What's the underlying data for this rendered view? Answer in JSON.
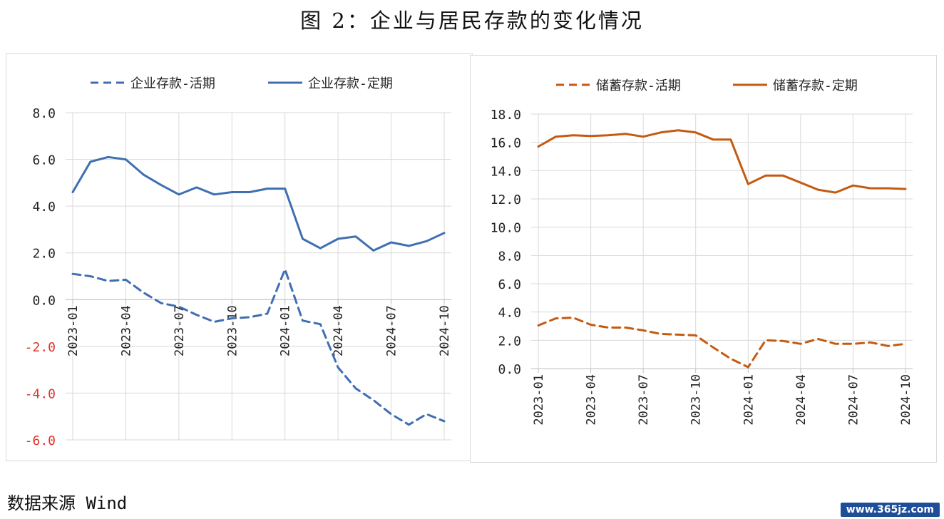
{
  "title": "图 2：企业与居民存款的变化情况",
  "source": "数据来源 Wind",
  "watermark": "www.365jz.com",
  "chart_data": [
    {
      "type": "line",
      "x": [
        "2023-01",
        "2023-02",
        "2023-03",
        "2023-04",
        "2023-05",
        "2023-06",
        "2023-07",
        "2023-08",
        "2023-09",
        "2023-10",
        "2023-11",
        "2023-12",
        "2024-01",
        "2024-02",
        "2024-03",
        "2024-04",
        "2024-05",
        "2024-06",
        "2024-07",
        "2024-08",
        "2024-09",
        "2024-10"
      ],
      "xticks": [
        "2023-01",
        "2023-04",
        "2023-07",
        "2023-10",
        "2024-01",
        "2024-04",
        "2024-07",
        "2024-10"
      ],
      "ylim": [
        -6,
        8
      ],
      "yticks": [
        8,
        6,
        4,
        2,
        0,
        -2,
        -4,
        -6
      ],
      "ytick_labels": [
        "8.0",
        "6.0",
        "4.0",
        "2.0",
        "0.0",
        "-2.0",
        "-4.0",
        "-6.0"
      ],
      "negative_tick_color": "#e0322b",
      "legend_position": "top",
      "series": [
        {
          "name": "企业存款-活期",
          "style": "dashed",
          "color": "#3f6fb2",
          "values": [
            1.1,
            1.0,
            0.8,
            0.85,
            0.3,
            -0.15,
            -0.3,
            -0.65,
            -0.95,
            -0.8,
            -0.75,
            -0.6,
            1.3,
            -0.9,
            -1.05,
            -2.9,
            -3.8,
            -4.3,
            -4.9,
            -5.35,
            -4.9,
            -5.2
          ]
        },
        {
          "name": "企业存款-定期",
          "style": "solid",
          "color": "#3f6fb2",
          "values": [
            4.6,
            5.9,
            6.1,
            6.0,
            5.35,
            4.9,
            4.5,
            4.8,
            4.5,
            4.6,
            4.6,
            4.75,
            4.75,
            2.6,
            2.2,
            2.6,
            2.7,
            2.1,
            2.45,
            2.3,
            2.5,
            2.85
          ]
        }
      ]
    },
    {
      "type": "line",
      "x": [
        "2023-01",
        "2023-02",
        "2023-03",
        "2023-04",
        "2023-05",
        "2023-06",
        "2023-07",
        "2023-08",
        "2023-09",
        "2023-10",
        "2023-11",
        "2023-12",
        "2024-01",
        "2024-02",
        "2024-03",
        "2024-04",
        "2024-05",
        "2024-06",
        "2024-07",
        "2024-08",
        "2024-09",
        "2024-10"
      ],
      "xticks": [
        "2023-01",
        "2023-04",
        "2023-07",
        "2023-10",
        "2024-01",
        "2024-04",
        "2024-07",
        "2024-10"
      ],
      "ylim": [
        0,
        18
      ],
      "yticks": [
        18,
        16,
        14,
        12,
        10,
        8,
        6,
        4,
        2,
        0
      ],
      "ytick_labels": [
        "18.0",
        "16.0",
        "14.0",
        "12.0",
        "10.0",
        "8.0",
        "6.0",
        "4.0",
        "2.0",
        "0.0"
      ],
      "legend_position": "top",
      "series": [
        {
          "name": "储蓄存款-活期",
          "style": "dashed",
          "color": "#c55a11",
          "values": [
            3.05,
            3.55,
            3.6,
            3.1,
            2.9,
            2.9,
            2.7,
            2.45,
            2.4,
            2.35,
            1.5,
            0.7,
            0.1,
            2.0,
            1.95,
            1.75,
            2.1,
            1.75,
            1.75,
            1.85,
            1.6,
            1.75
          ]
        },
        {
          "name": "储蓄存款-定期",
          "style": "solid",
          "color": "#c55a11",
          "values": [
            15.7,
            16.4,
            16.5,
            16.45,
            16.5,
            16.6,
            16.4,
            16.7,
            16.85,
            16.7,
            16.2,
            16.2,
            13.05,
            13.65,
            13.65,
            13.15,
            12.65,
            12.45,
            12.95,
            12.75,
            12.75,
            12.7
          ]
        }
      ]
    }
  ]
}
